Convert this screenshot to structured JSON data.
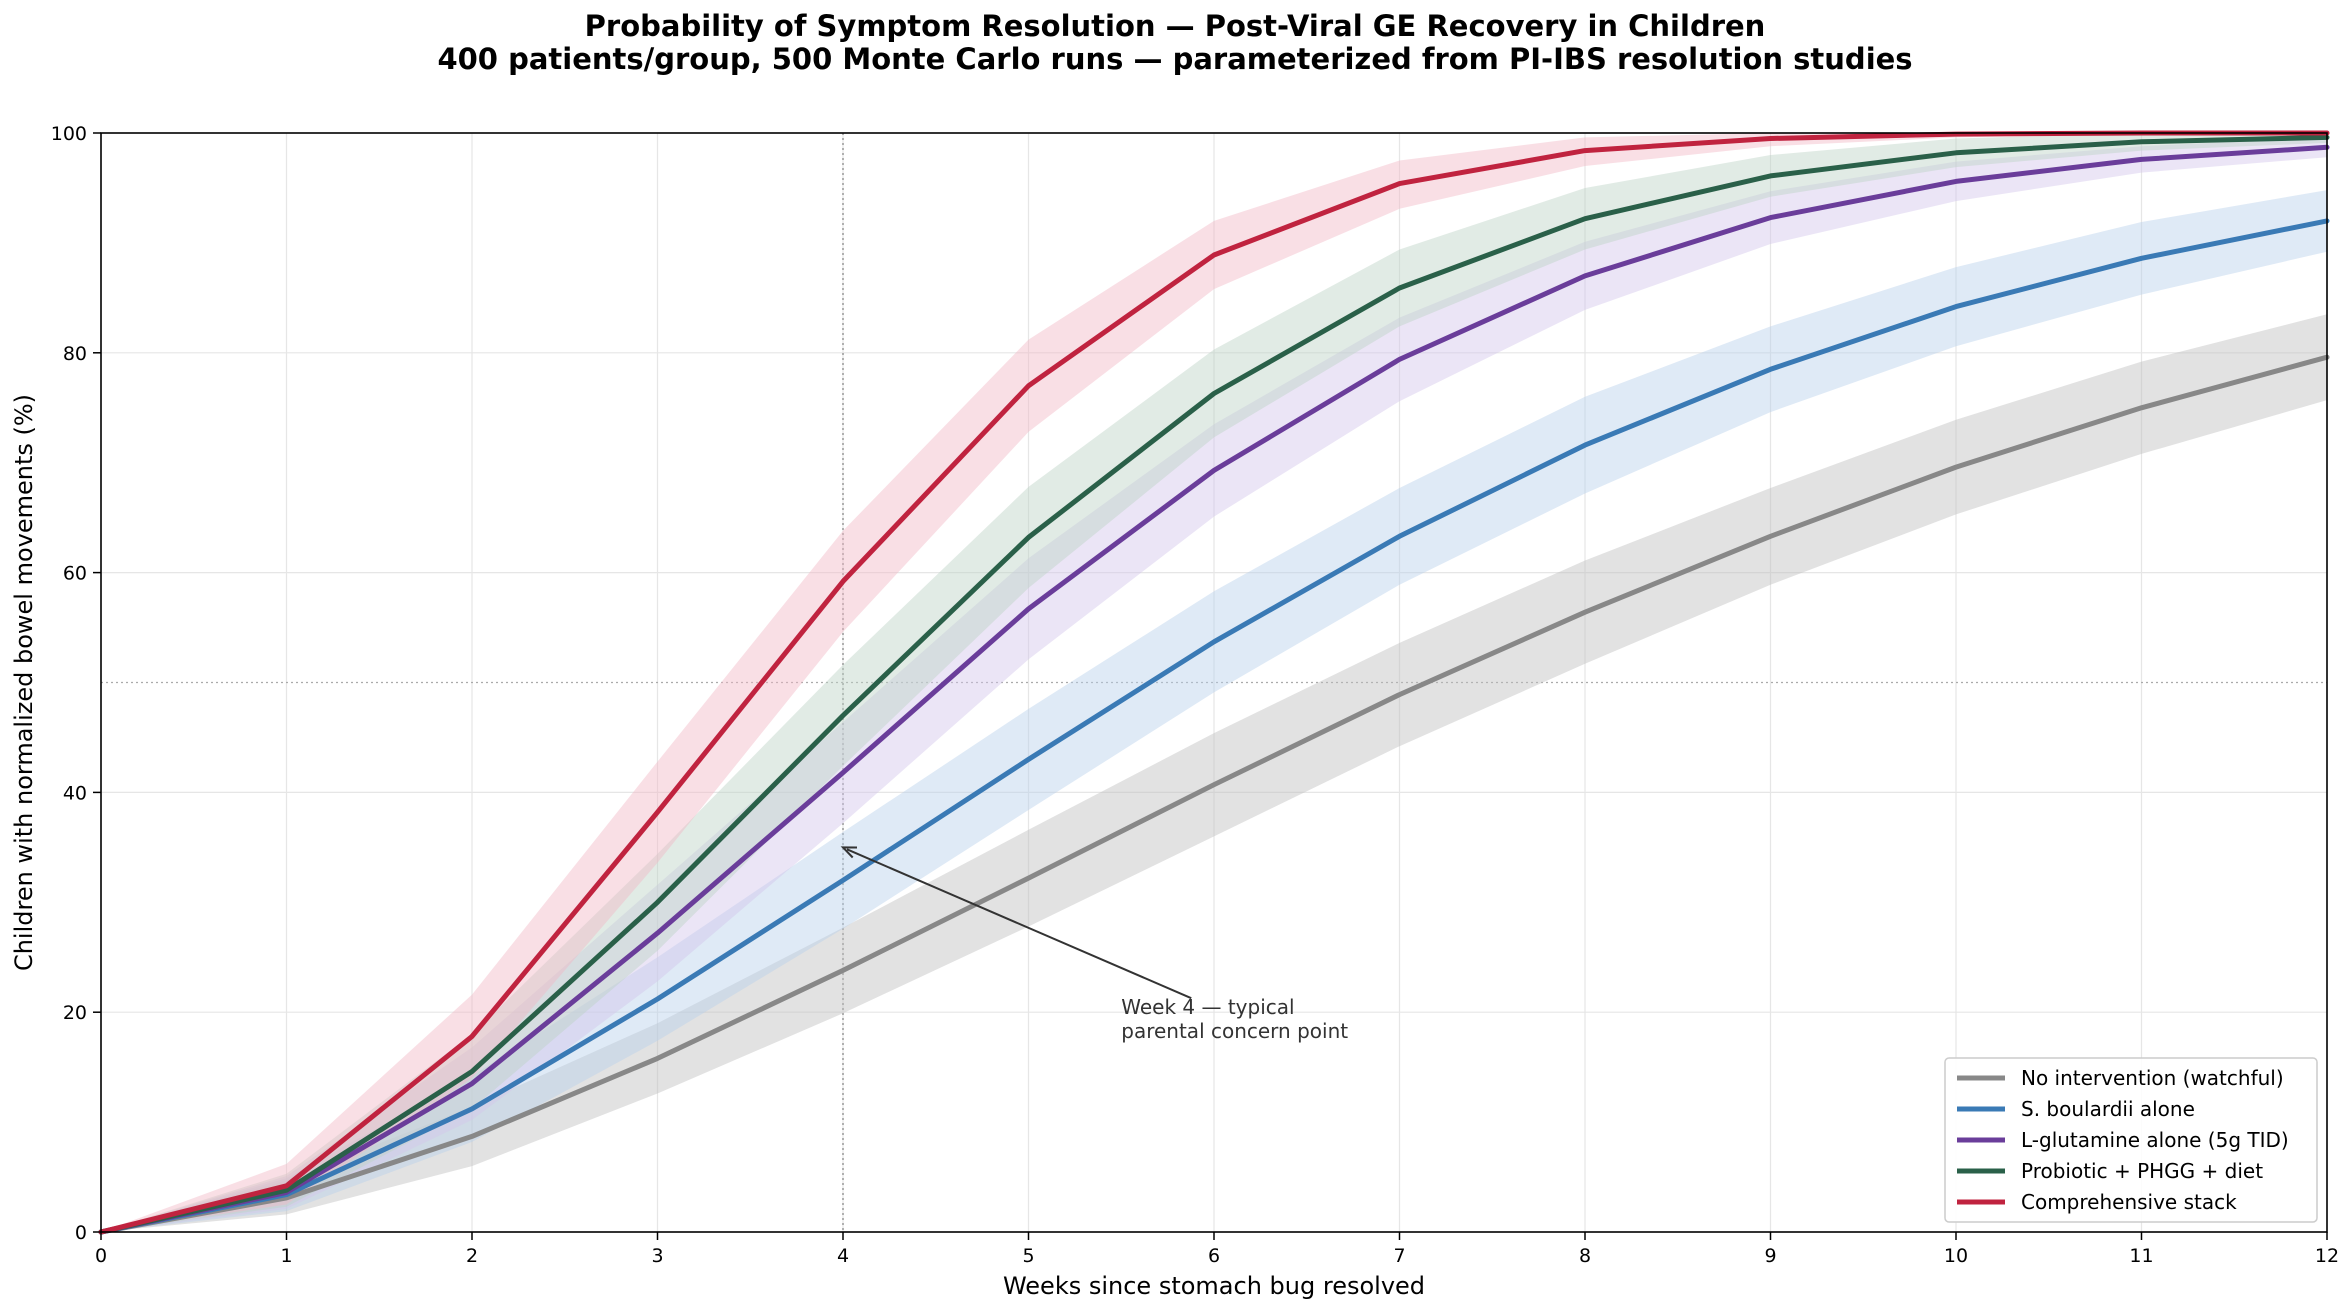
{
  "chart_data": {
    "type": "line",
    "title": "Probability of Symptom Resolution — Post-Viral GE Recovery in Children",
    "subtitle": "400 patients/group, 500 Monte Carlo runs — parameterized from PI-IBS resolution studies",
    "xlabel": "Weeks since stomach bug resolved",
    "ylabel": "Children with normalized bowel movements (%)",
    "xlim": [
      0,
      12
    ],
    "ylim": [
      0,
      100
    ],
    "x": [
      0,
      1,
      2,
      3,
      4,
      5,
      6,
      7,
      8,
      9,
      10,
      11,
      12
    ],
    "x_ticks": [
      "0",
      "1",
      "2",
      "3",
      "4",
      "5",
      "6",
      "7",
      "8",
      "9",
      "10",
      "11",
      "12"
    ],
    "y_ticks": [
      "0",
      "20",
      "40",
      "60",
      "80",
      "100"
    ],
    "grid": true,
    "legend_position": "lower-right",
    "series": [
      {
        "name": "No intervention (watchful)",
        "color": "#888888",
        "band_color": "#bfbfbf",
        "values": [
          0,
          3.1,
          8.7,
          15.8,
          23.8,
          32.2,
          40.7,
          48.9,
          56.4,
          63.3,
          69.6,
          75.0,
          79.6
        ],
        "lower": [
          0,
          1.6,
          6.0,
          12.6,
          19.9,
          27.8,
          36.0,
          44.2,
          51.7,
          58.9,
          65.3,
          70.8,
          75.7
        ],
        "upper": [
          0,
          4.7,
          11.4,
          19.0,
          27.7,
          36.6,
          45.4,
          53.6,
          61.1,
          67.7,
          73.9,
          79.2,
          83.5
        ]
      },
      {
        "name": "S. boulardii alone",
        "color": "#3a7ab5",
        "band_color": "#b8d1ec",
        "values": [
          0,
          3.4,
          11.2,
          21.2,
          32.0,
          43.0,
          53.7,
          63.3,
          71.6,
          78.5,
          84.2,
          88.6,
          92.0
        ],
        "lower": [
          0,
          1.9,
          8.2,
          17.4,
          27.6,
          38.4,
          49.1,
          58.9,
          67.2,
          74.6,
          80.6,
          85.3,
          89.2
        ],
        "upper": [
          0,
          4.9,
          14.2,
          25.0,
          36.4,
          47.6,
          58.3,
          67.7,
          76.0,
          82.4,
          87.8,
          91.9,
          94.8
        ]
      },
      {
        "name": "L-glutamine alone (5g TID)",
        "color": "#6a3d9a",
        "band_color": "#d2c5ea",
        "values": [
          0,
          3.6,
          13.5,
          27.2,
          41.8,
          56.7,
          69.3,
          79.4,
          87.0,
          92.3,
          95.6,
          97.6,
          98.7
        ],
        "lower": [
          0,
          2.1,
          10.2,
          22.8,
          37.2,
          52.1,
          65.1,
          75.6,
          83.9,
          89.9,
          93.8,
          96.4,
          97.8
        ],
        "upper": [
          0,
          5.1,
          16.8,
          31.6,
          46.4,
          61.3,
          73.5,
          83.2,
          90.1,
          94.7,
          97.4,
          98.8,
          99.6
        ]
      },
      {
        "name": "Probiotic + PHGG + diet",
        "color": "#2a6049",
        "band_color": "#bcd3c6",
        "values": [
          0,
          3.8,
          14.6,
          30.0,
          47.0,
          63.2,
          76.3,
          85.9,
          92.2,
          96.1,
          98.2,
          99.2,
          99.6
        ],
        "lower": [
          0,
          2.3,
          11.2,
          25.6,
          42.4,
          58.6,
          72.3,
          82.4,
          89.4,
          94.2,
          96.9,
          98.4,
          99.1
        ],
        "upper": [
          0,
          5.3,
          18.0,
          34.4,
          51.6,
          67.8,
          80.3,
          89.4,
          95.0,
          98.0,
          99.5,
          100,
          100
        ]
      },
      {
        "name": "Comprehensive stack",
        "color": "#c0233f",
        "band_color": "#f1b7c6",
        "values": [
          0,
          4.2,
          17.8,
          38.2,
          59.2,
          77.0,
          88.9,
          95.4,
          98.4,
          99.5,
          99.9,
          100,
          100
        ],
        "lower": [
          0,
          2.5,
          14.0,
          33.6,
          54.6,
          72.8,
          85.8,
          93.1,
          97.0,
          98.8,
          99.6,
          99.9,
          100
        ],
        "upper": [
          0,
          6.2,
          21.6,
          42.8,
          63.8,
          81.2,
          92.0,
          97.5,
          99.6,
          100,
          100,
          100,
          100
        ]
      }
    ],
    "reference_lines": {
      "vertical_x": 4,
      "horizontal_y": 50
    },
    "annotation": {
      "text_line1": "Week 4 — typical",
      "text_line2": "parental concern point",
      "point_x": 4,
      "point_y": 35,
      "text_x": 5.5,
      "text_y": 20
    }
  }
}
